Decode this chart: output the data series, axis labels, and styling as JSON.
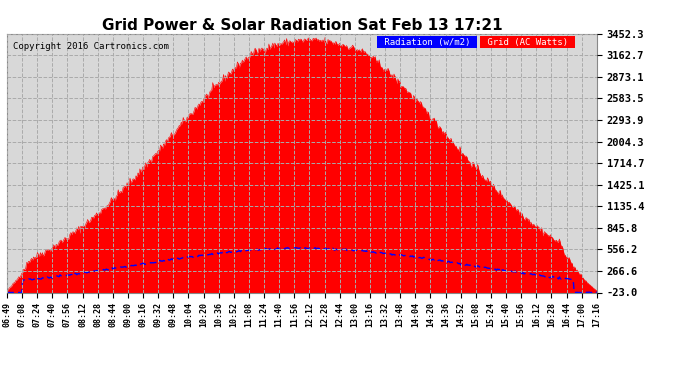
{
  "title": "Grid Power & Solar Radiation Sat Feb 13 17:21",
  "copyright": "Copyright 2016 Cartronics.com",
  "legend_radiation": "Radiation (w/m2)",
  "legend_grid": "Grid (AC Watts)",
  "yticks": [
    3452.3,
    3162.7,
    2873.1,
    2583.5,
    2293.9,
    2004.3,
    1714.7,
    1425.1,
    1135.4,
    845.8,
    556.2,
    266.6,
    -23.0
  ],
  "ymin": -23.0,
  "ymax": 3452.3,
  "background_color": "#ffffff",
  "plot_bg_color": "#d8d8d8",
  "grid_color": "#aaaaaa",
  "radiation_color": "#ff0000",
  "grid_line_color": "#0000ff",
  "title_fontsize": 11,
  "xtick_labels": [
    "06:49",
    "07:08",
    "07:24",
    "07:40",
    "07:56",
    "08:12",
    "08:28",
    "08:44",
    "09:00",
    "09:16",
    "09:32",
    "09:48",
    "10:04",
    "10:20",
    "10:36",
    "10:52",
    "11:08",
    "11:24",
    "11:40",
    "11:56",
    "12:12",
    "12:28",
    "12:44",
    "13:00",
    "13:16",
    "13:32",
    "13:48",
    "14:04",
    "14:20",
    "14:36",
    "14:52",
    "15:08",
    "15:24",
    "15:40",
    "15:56",
    "16:12",
    "16:28",
    "16:44",
    "17:00",
    "17:16"
  ]
}
